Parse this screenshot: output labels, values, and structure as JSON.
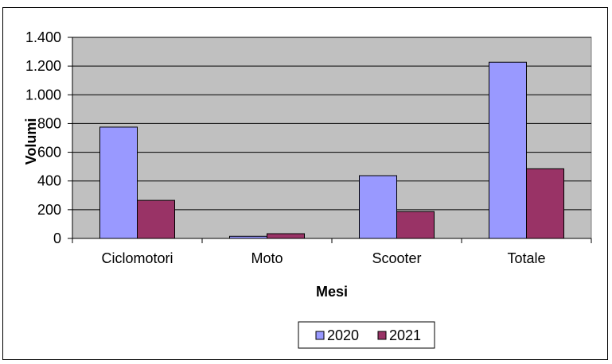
{
  "chart_data": {
    "type": "bar",
    "title": "",
    "categories": [
      "Ciclomotori",
      "Moto",
      "Scooter",
      "Totale"
    ],
    "series": [
      {
        "name": "2020",
        "color": "#9999ff",
        "values": [
          775,
          15,
          437,
          1227
        ]
      },
      {
        "name": "2021",
        "color": "#993366",
        "values": [
          265,
          33,
          187,
          485
        ]
      }
    ],
    "xlabel": "Mesi",
    "ylabel": "Volumi",
    "ylim": [
      0,
      1400
    ],
    "yticks": [
      0,
      200,
      400,
      600,
      800,
      1000,
      1200,
      1400
    ],
    "ytick_labels": [
      "0",
      "200",
      "400",
      "600",
      "800",
      "1.000",
      "1.200",
      "1.400"
    ],
    "grid": true,
    "plot_background": "#c0c0c0",
    "legend_position": "bottom"
  }
}
